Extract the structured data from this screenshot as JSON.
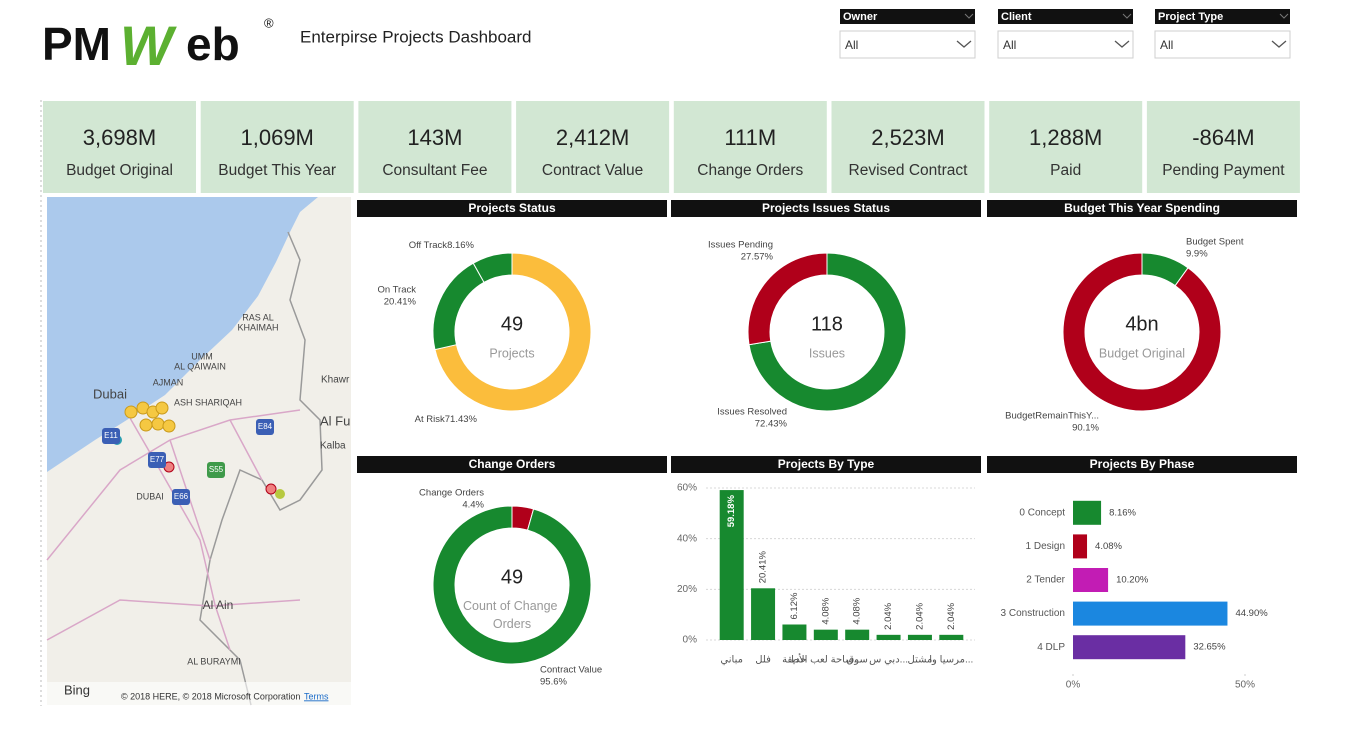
{
  "header": {
    "logo": [
      "PM",
      "W",
      "eb",
      "®"
    ],
    "title": "Enterpirse Projects Dashboard"
  },
  "filters": [
    {
      "label": "Owner",
      "value": "All"
    },
    {
      "label": "Client",
      "value": "All"
    },
    {
      "label": "Project Type",
      "value": "All"
    }
  ],
  "kpis": [
    {
      "value": "3,698M",
      "label": "Budget Original"
    },
    {
      "value": "1,069M",
      "label": "Budget This Year"
    },
    {
      "value": "143M",
      "label": "Consultant Fee"
    },
    {
      "value": "2,412M",
      "label": "Contract Value"
    },
    {
      "value": "111M",
      "label": "Change Orders"
    },
    {
      "value": "2,523M",
      "label": "Revised Contract"
    },
    {
      "value": "1,288M",
      "label": "Paid"
    },
    {
      "value": "-864M",
      "label": "Pending Payment"
    }
  ],
  "map": {
    "labels": [
      "RAS AL",
      "KHAIMAH",
      "UMM",
      "AL QAIWAIN",
      "AJMAN",
      "ASH SHARIQAH",
      "Dubai",
      "DUBAI",
      "Al Ain",
      "AL BURAYMI",
      "Khawr",
      "Al Fu",
      "Kalba",
      "E11",
      "E77",
      "E66",
      "E84",
      "S55"
    ],
    "brand": "Bing",
    "attribution": "© 2018 HERE, © 2018 Microsoft Corporation",
    "terms": "Terms"
  },
  "chart_data": [
    {
      "type": "pie",
      "title": "Projects Status",
      "categories": [
        "At Risk",
        "On Track",
        "Off Track"
      ],
      "values": [
        71.43,
        20.41,
        8.16
      ],
      "value_labels": [
        "71.43%",
        "20.41%",
        "8.16%"
      ],
      "colors": [
        "#fbbd3c",
        "#17892f",
        "#17892f"
      ],
      "center_value": "49",
      "center_label": "Projects"
    },
    {
      "type": "pie",
      "title": "Projects Issues Status",
      "categories": [
        "Issues Resolved",
        "Issues Pending"
      ],
      "values": [
        72.43,
        27.57
      ],
      "value_labels": [
        "72.43%",
        "27.57%"
      ],
      "colors": [
        "#17892f",
        "#b0001a"
      ],
      "center_value": "118",
      "center_label": "Issues"
    },
    {
      "type": "pie",
      "title": "Budget This Year Spending",
      "categories": [
        "Budget Spent",
        "BudgetRemainThisY..."
      ],
      "values": [
        9.9,
        90.1
      ],
      "value_labels": [
        "9.9%",
        "90.1%"
      ],
      "colors": [
        "#17892f",
        "#b0001a"
      ],
      "center_value": "4bn",
      "center_label": "Budget Original"
    },
    {
      "type": "pie",
      "title": "Change Orders",
      "categories": [
        "Change Orders",
        "Contract Value"
      ],
      "values": [
        4.4,
        95.6
      ],
      "value_labels": [
        "4.4%",
        "95.6%"
      ],
      "colors": [
        "#b0001a",
        "#17892f"
      ],
      "center_value": "49",
      "center_label": "Count of Change Orders"
    },
    {
      "type": "bar",
      "title": "Projects By Type",
      "orientation": "vertical",
      "categories": [
        "مباني",
        "فلل",
        "حديقة",
        "ساحة لعب الأط...",
        "سوق",
        "دبي س...",
        "مشتل",
        "مرسيا وا..."
      ],
      "values": [
        59.18,
        20.41,
        6.12,
        4.08,
        4.08,
        2.04,
        2.04,
        2.04
      ],
      "value_labels": [
        "59.18%",
        "20.41%",
        "6.12%",
        "4.08%",
        "4.08%",
        "2.04%",
        "2.04%",
        "2.04%"
      ],
      "color": "#17892f",
      "ylim": [
        0,
        60
      ],
      "yticks": [
        {
          "value": 0,
          "label": "0%"
        },
        {
          "value": 20,
          "label": "20%"
        },
        {
          "value": 40,
          "label": "40%"
        },
        {
          "value": 60,
          "label": "60%"
        }
      ],
      "grid": true
    },
    {
      "type": "bar",
      "title": "Projects By Phase",
      "orientation": "horizontal",
      "categories": [
        "0 Concept",
        "1 Design",
        "2 Tender",
        "3 Construction",
        "4 DLP"
      ],
      "values": [
        8.16,
        4.08,
        10.2,
        44.9,
        32.65
      ],
      "value_labels": [
        "8.16%",
        "4.08%",
        "10.20%",
        "44.90%",
        "32.65%"
      ],
      "colors": [
        "#17892f",
        "#b0001a",
        "#c21cb4",
        "#1b87e0",
        "#6a2ea3"
      ],
      "xlim": [
        0,
        50
      ],
      "xticks": [
        {
          "value": 0,
          "label": "0%"
        },
        {
          "value": 50,
          "label": "50%"
        }
      ]
    }
  ]
}
